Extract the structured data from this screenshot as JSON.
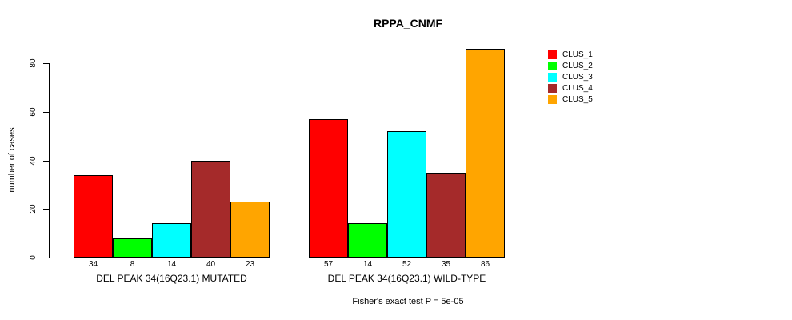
{
  "title": "RPPA_CNMF",
  "footnote": "Fisher's exact test P = 5e-05",
  "y_axis": {
    "label": "number of cases",
    "ticks": [
      0,
      20,
      40,
      60,
      80
    ]
  },
  "legend": {
    "items": [
      {
        "label": "CLUS_1",
        "color": "#FF0000"
      },
      {
        "label": "CLUS_2",
        "color": "#00FF00"
      },
      {
        "label": "CLUS_3",
        "color": "#00FFFF"
      },
      {
        "label": "CLUS_4",
        "color": "#A52A2A"
      },
      {
        "label": "CLUS_5",
        "color": "#FFA500"
      }
    ]
  },
  "chart_data": {
    "type": "bar",
    "title": "RPPA_CNMF",
    "xlabel": "",
    "ylabel": "number of cases",
    "ylim": [
      0,
      86
    ],
    "yticks": [
      0,
      20,
      40,
      60,
      80
    ],
    "grid": false,
    "legend_position": "right",
    "categories": [
      "DEL PEAK 34(16Q23.1) MUTATED",
      "DEL PEAK 34(16Q23.1) WILD-TYPE"
    ],
    "series": [
      {
        "name": "CLUS_1",
        "color": "#FF0000",
        "values": [
          34,
          57
        ]
      },
      {
        "name": "CLUS_2",
        "color": "#00FF00",
        "values": [
          8,
          14
        ]
      },
      {
        "name": "CLUS_3",
        "color": "#00FFFF",
        "values": [
          14,
          52
        ]
      },
      {
        "name": "CLUS_4",
        "color": "#A52A2A",
        "values": [
          40,
          35
        ]
      },
      {
        "name": "CLUS_5",
        "color": "#FFA500",
        "values": [
          23,
          86
        ]
      }
    ],
    "bar_value_labels": [
      [
        34,
        8,
        14,
        40,
        23
      ],
      [
        57,
        14,
        52,
        35,
        86
      ]
    ],
    "annotation": "Fisher's exact test P = 5e-05"
  }
}
